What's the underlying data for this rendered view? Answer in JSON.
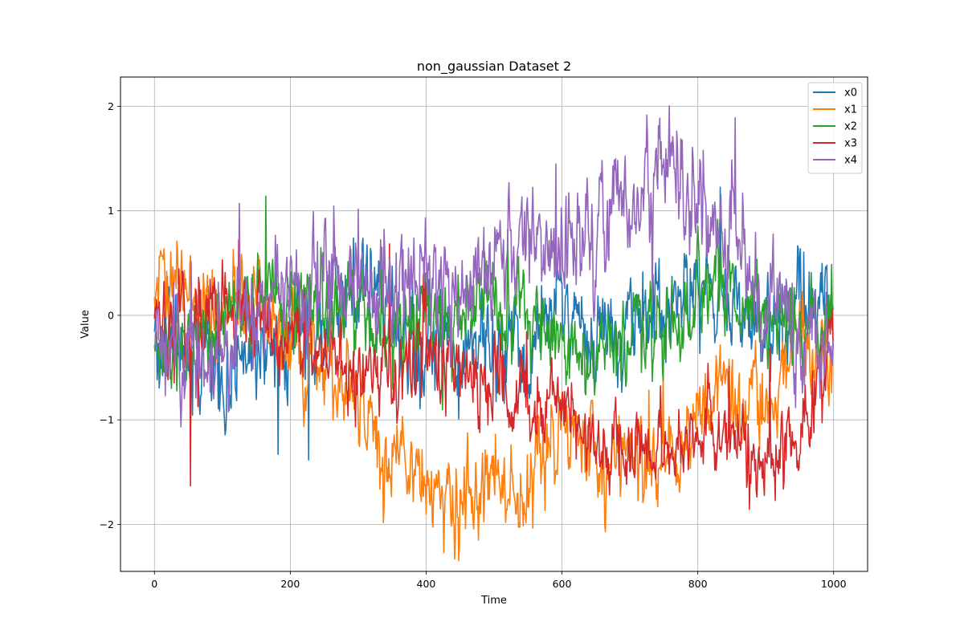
{
  "chart_data": {
    "type": "line",
    "title": "non_gaussian Dataset 2",
    "xlabel": "Time",
    "ylabel": "Value",
    "xlim": [
      -50,
      1050
    ],
    "ylim": [
      -2.45,
      2.28
    ],
    "xticks": [
      0,
      200,
      400,
      600,
      800,
      1000
    ],
    "yticks": [
      -2,
      -1,
      0,
      1,
      2
    ],
    "ytick_labels": [
      "−2",
      "−1",
      "0",
      "1",
      "2"
    ],
    "grid": true,
    "legend_position": "top-right",
    "x_range": [
      0,
      999
    ],
    "series": [
      {
        "name": "x0",
        "color": "#1f77b4",
        "approx_level": [
          [
            0,
            -0.2
          ],
          [
            50,
            -0.4
          ],
          [
            100,
            -0.45
          ],
          [
            150,
            -0.4
          ],
          [
            200,
            -0.25
          ],
          [
            250,
            -0.05
          ],
          [
            280,
            0.3
          ],
          [
            320,
            0.2
          ],
          [
            350,
            0.0
          ],
          [
            400,
            -0.3
          ],
          [
            450,
            -0.4
          ],
          [
            500,
            -0.3
          ],
          [
            550,
            -0.4
          ],
          [
            600,
            0.1
          ],
          [
            650,
            -0.2
          ],
          [
            700,
            -0.05
          ],
          [
            750,
            0.2
          ],
          [
            800,
            0.35
          ],
          [
            850,
            0.05
          ],
          [
            900,
            -0.15
          ],
          [
            950,
            0.0
          ],
          [
            999,
            0.15
          ]
        ],
        "noise": 0.22
      },
      {
        "name": "x1",
        "color": "#ff7f0e",
        "approx_level": [
          [
            0,
            0.3
          ],
          [
            30,
            0.4
          ],
          [
            60,
            0.1
          ],
          [
            100,
            0.05
          ],
          [
            130,
            0.3
          ],
          [
            150,
            0.15
          ],
          [
            200,
            -0.35
          ],
          [
            250,
            -0.5
          ],
          [
            300,
            -0.8
          ],
          [
            330,
            -1.4
          ],
          [
            360,
            -1.35
          ],
          [
            400,
            -1.7
          ],
          [
            450,
            -1.75
          ],
          [
            500,
            -1.6
          ],
          [
            550,
            -1.75
          ],
          [
            580,
            -1.3
          ],
          [
            620,
            -1.1
          ],
          [
            660,
            -1.3
          ],
          [
            700,
            -1.45
          ],
          [
            740,
            -1.3
          ],
          [
            780,
            -1.15
          ],
          [
            830,
            -0.6
          ],
          [
            860,
            -0.9
          ],
          [
            900,
            -0.75
          ],
          [
            950,
            -0.35
          ],
          [
            999,
            -0.5
          ]
        ],
        "noise": 0.2
      },
      {
        "name": "x2",
        "color": "#2ca02c",
        "approx_level": [
          [
            0,
            -0.3
          ],
          [
            50,
            -0.25
          ],
          [
            100,
            -0.05
          ],
          [
            150,
            0.15
          ],
          [
            200,
            0.0
          ],
          [
            250,
            0.1
          ],
          [
            300,
            0.05
          ],
          [
            350,
            -0.2
          ],
          [
            400,
            0.05
          ],
          [
            450,
            -0.1
          ],
          [
            500,
            0.2
          ],
          [
            550,
            0.0
          ],
          [
            600,
            -0.15
          ],
          [
            650,
            -0.35
          ],
          [
            700,
            -0.2
          ],
          [
            750,
            -0.1
          ],
          [
            800,
            0.1
          ],
          [
            850,
            0.25
          ],
          [
            900,
            -0.05
          ],
          [
            950,
            -0.1
          ],
          [
            999,
            -0.05
          ]
        ],
        "noise": 0.2
      },
      {
        "name": "x3",
        "color": "#d62728",
        "approx_level": [
          [
            0,
            -0.1
          ],
          [
            50,
            -0.15
          ],
          [
            100,
            0.05
          ],
          [
            150,
            -0.05
          ],
          [
            200,
            -0.2
          ],
          [
            250,
            -0.3
          ],
          [
            300,
            -0.6
          ],
          [
            350,
            -0.55
          ],
          [
            400,
            -0.35
          ],
          [
            450,
            -0.45
          ],
          [
            500,
            -0.75
          ],
          [
            550,
            -0.85
          ],
          [
            600,
            -0.85
          ],
          [
            650,
            -1.2
          ],
          [
            700,
            -1.25
          ],
          [
            750,
            -1.15
          ],
          [
            800,
            -1.1
          ],
          [
            850,
            -1.35
          ],
          [
            900,
            -1.3
          ],
          [
            950,
            -1.1
          ],
          [
            999,
            -0.3
          ]
        ],
        "noise": 0.2
      },
      {
        "name": "x4",
        "color": "#9467bd",
        "approx_level": [
          [
            0,
            -0.3
          ],
          [
            50,
            -0.3
          ],
          [
            100,
            -0.3
          ],
          [
            150,
            0.05
          ],
          [
            200,
            0.2
          ],
          [
            250,
            0.35
          ],
          [
            300,
            0.4
          ],
          [
            350,
            0.25
          ],
          [
            400,
            0.35
          ],
          [
            450,
            0.15
          ],
          [
            500,
            0.6
          ],
          [
            550,
            0.75
          ],
          [
            600,
            0.65
          ],
          [
            650,
            0.7
          ],
          [
            700,
            1.05
          ],
          [
            750,
            1.35
          ],
          [
            780,
            1.2
          ],
          [
            800,
            0.85
          ],
          [
            850,
            0.75
          ],
          [
            900,
            0.2
          ],
          [
            950,
            -0.1
          ],
          [
            999,
            -0.3
          ]
        ],
        "noise": 0.25
      }
    ]
  }
}
